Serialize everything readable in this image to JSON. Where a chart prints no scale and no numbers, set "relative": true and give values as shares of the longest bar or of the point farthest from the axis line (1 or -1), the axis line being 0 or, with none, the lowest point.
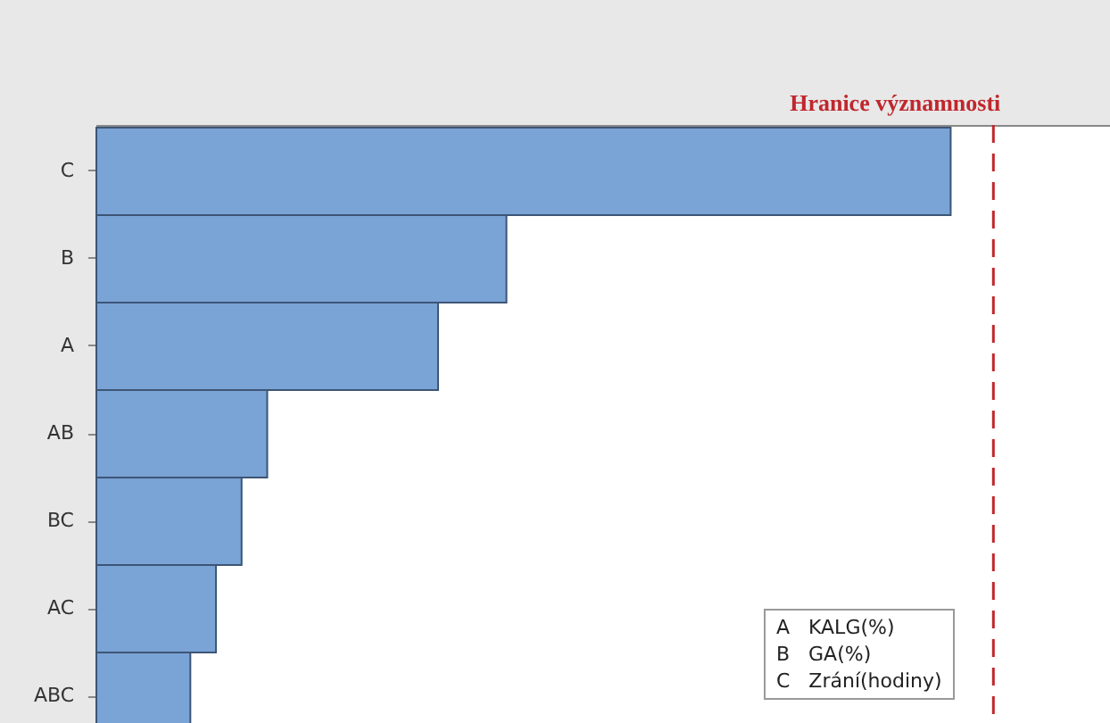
{
  "chart_data": {
    "type": "bar",
    "orientation": "horizontal",
    "relative": true,
    "categories": [
      "C",
      "B",
      "A",
      "AB",
      "BC",
      "AC",
      "ABC"
    ],
    "values": [
      1,
      0.48,
      0.4,
      0.2,
      0.17,
      0.14,
      0.11
    ],
    "color": "#7aa3d6",
    "ref_lines": [
      {
        "axis": "x",
        "value": 1.05,
        "label": "Hranice významnosti",
        "color": "#c0272d",
        "line_style": "dashed"
      }
    ],
    "annotations": [
      "A   KALG(%)",
      "B   GA(%)",
      "C   Zrání(hodiny)"
    ],
    "grid": false,
    "legend": false
  }
}
